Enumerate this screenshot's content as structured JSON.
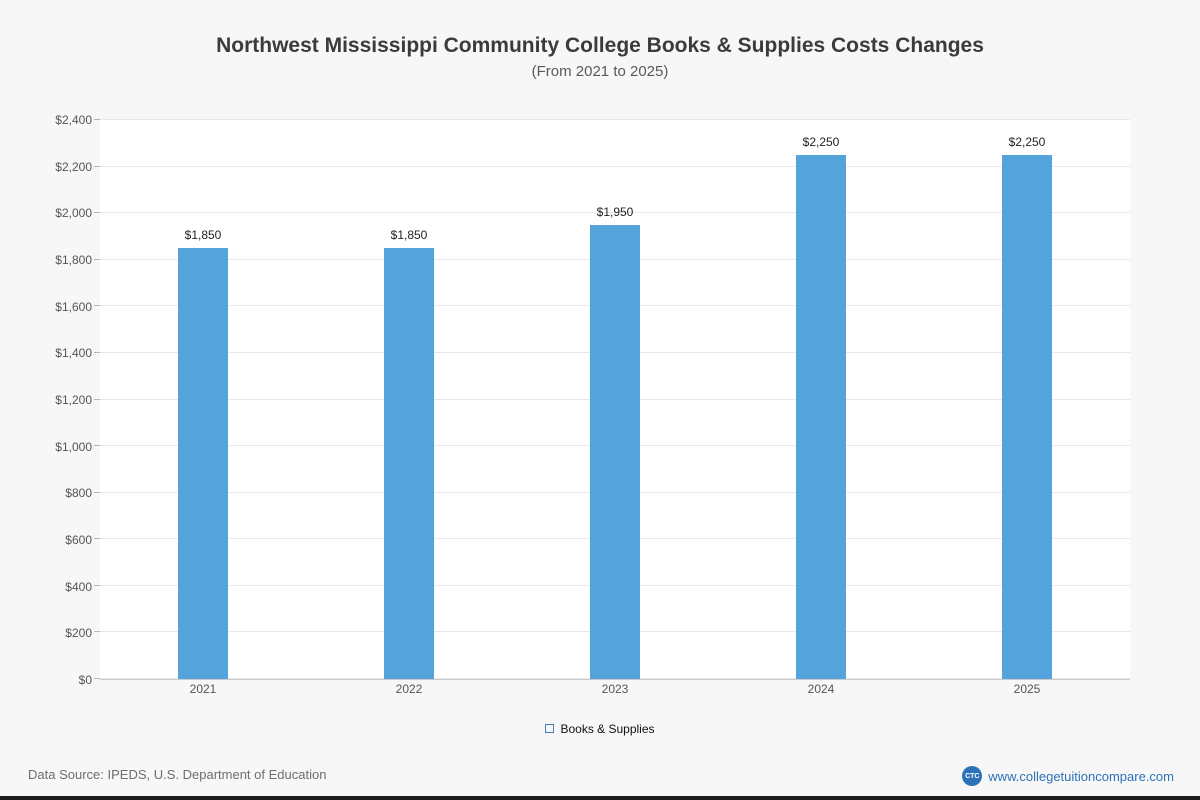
{
  "chart_data": {
    "type": "bar",
    "title": "Northwest Mississippi Community College Books & Supplies Costs Changes",
    "subtitle": "(From 2021 to 2025)",
    "categories": [
      "2021",
      "2022",
      "2023",
      "2024",
      "2025"
    ],
    "series": [
      {
        "name": "Books & Supplies",
        "values": [
          1850,
          1850,
          1950,
          2250,
          2250
        ],
        "value_labels": [
          "$1,850",
          "$1,850",
          "$1,950",
          "$2,250",
          "$2,250"
        ],
        "color": "#55a3dd"
      }
    ],
    "xlabel": "",
    "ylabel": "",
    "ylim": [
      0,
      2400
    ],
    "ytick_step": 200,
    "ytick_labels": [
      "$0",
      "$200",
      "$400",
      "$600",
      "$800",
      "$1,000",
      "$1,200",
      "$1,400",
      "$1,600",
      "$1,800",
      "$2,000",
      "$2,200",
      "$2,400"
    ],
    "grid": true,
    "legend_position": "bottom",
    "legend": [
      {
        "label": "Books & Supplies",
        "color": "#55a3dd"
      }
    ]
  },
  "footer": {
    "source": "Data Source: IPEDS, U.S. Department of Education",
    "site": "www.collegetuitioncompare.com",
    "logo_text": "CTC"
  },
  "colors": {
    "bar": "#55a3dd",
    "accent_blue": "#2d72b8",
    "page_background": "#f7f7f7"
  }
}
